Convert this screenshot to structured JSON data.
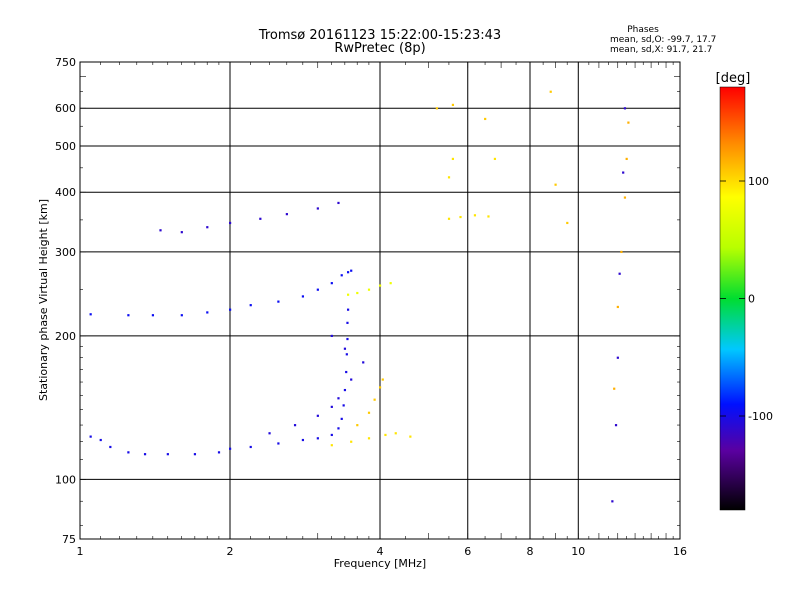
{
  "chart_data": {
    "type": "scatter",
    "title_line1": "Tromsø 20161123 15:22:00-15:23:43",
    "title_line2": "RwPretec (8p)",
    "stats": {
      "heading": "Phases",
      "line_o": "mean, sd,O: -99.7, 17.7",
      "line_x": "mean, sd,X:  91.7, 21.7"
    },
    "xlabel": "Frequency [MHz]",
    "ylabel": "Stationary phase Virtual Height [km]",
    "x_scale": "log",
    "y_scale": "log",
    "xlim": [
      1,
      16
    ],
    "ylim": [
      75,
      750
    ],
    "x_ticks": [
      1,
      2,
      4,
      6,
      8,
      10,
      16
    ],
    "x_tick_labels": [
      "1",
      "2",
      "4",
      "6",
      "8",
      "10",
      "16"
    ],
    "y_ticks": [
      75,
      100,
      200,
      300,
      400,
      500,
      600,
      750
    ],
    "y_tick_labels": [
      "75",
      "100",
      "200",
      "300",
      "400",
      "500",
      "600",
      "750"
    ],
    "x_gridlines": [
      2,
      4,
      6,
      8,
      10
    ],
    "y_gridlines": [
      100,
      200,
      300,
      400,
      500,
      600
    ],
    "colorbar": {
      "label": "[deg]",
      "range": [
        -180,
        180
      ],
      "ticks": [
        100,
        0,
        -100
      ],
      "tick_labels": [
        "100",
        "0",
        "-100"
      ]
    },
    "traces": [
      {
        "phase": -100,
        "points": [
          [
            1.05,
            123
          ],
          [
            1.1,
            121
          ],
          [
            1.15,
            117
          ],
          [
            1.25,
            114
          ],
          [
            1.35,
            113
          ],
          [
            1.5,
            113
          ],
          [
            1.7,
            113
          ],
          [
            1.9,
            114
          ],
          [
            2.0,
            116
          ],
          [
            2.2,
            117
          ],
          [
            2.5,
            119
          ],
          [
            2.8,
            121
          ],
          [
            3.0,
            122
          ],
          [
            3.2,
            124
          ],
          [
            3.3,
            128
          ],
          [
            3.35,
            134
          ],
          [
            3.38,
            143
          ],
          [
            3.4,
            154
          ],
          [
            3.42,
            168
          ],
          [
            3.43,
            183
          ],
          [
            3.44,
            197
          ],
          [
            3.44,
            213
          ],
          [
            3.45,
            227
          ]
        ]
      },
      {
        "phase": -95,
        "points": [
          [
            1.05,
            222
          ],
          [
            1.25,
            221
          ],
          [
            1.4,
            221
          ],
          [
            1.6,
            221
          ],
          [
            1.8,
            224
          ],
          [
            2.0,
            227
          ],
          [
            2.2,
            232
          ],
          [
            2.5,
            236
          ],
          [
            2.8,
            242
          ],
          [
            3.0,
            250
          ],
          [
            3.2,
            258
          ],
          [
            3.35,
            268
          ],
          [
            3.45,
            272
          ],
          [
            3.5,
            274
          ]
        ]
      },
      {
        "phase": -110,
        "points": [
          [
            1.45,
            333
          ],
          [
            1.6,
            330
          ],
          [
            1.8,
            338
          ],
          [
            2.0,
            345
          ],
          [
            2.3,
            352
          ],
          [
            2.6,
            360
          ],
          [
            3.0,
            370
          ],
          [
            3.3,
            380
          ]
        ]
      },
      {
        "phase": -105,
        "points": [
          [
            2.4,
            125
          ],
          [
            2.7,
            130
          ],
          [
            3.0,
            136
          ],
          [
            3.2,
            142
          ],
          [
            3.3,
            148
          ],
          [
            3.5,
            162
          ],
          [
            3.7,
            176
          ],
          [
            3.4,
            188
          ],
          [
            3.2,
            200
          ]
        ]
      },
      {
        "phase": 100,
        "points": [
          [
            3.2,
            118
          ],
          [
            3.5,
            120
          ],
          [
            3.8,
            122
          ],
          [
            4.1,
            124
          ],
          [
            4.3,
            125
          ],
          [
            4.6,
            123
          ]
        ]
      },
      {
        "phase": 110,
        "points": [
          [
            3.6,
            130
          ],
          [
            3.8,
            138
          ],
          [
            3.9,
            147
          ],
          [
            4.0,
            156
          ],
          [
            4.05,
            162
          ]
        ]
      },
      {
        "phase": 80,
        "points": [
          [
            3.45,
            244
          ],
          [
            3.6,
            246
          ],
          [
            3.8,
            250
          ],
          [
            4.0,
            255
          ],
          [
            4.2,
            258
          ]
        ]
      },
      {
        "phase": 100,
        "points": [
          [
            5.5,
            352
          ],
          [
            5.8,
            355
          ],
          [
            6.2,
            358
          ],
          [
            6.6,
            356
          ],
          [
            5.5,
            430
          ],
          [
            5.6,
            470
          ],
          [
            6.8,
            470
          ]
        ]
      },
      {
        "phase": 120,
        "points": [
          [
            11.8,
            155
          ],
          [
            12.0,
            230
          ],
          [
            12.2,
            300
          ],
          [
            12.4,
            390
          ],
          [
            12.5,
            470
          ],
          [
            12.6,
            560
          ]
        ]
      },
      {
        "phase": -110,
        "points": [
          [
            11.7,
            90
          ],
          [
            11.9,
            130
          ],
          [
            12.0,
            180
          ],
          [
            12.1,
            270
          ],
          [
            12.3,
            440
          ],
          [
            12.4,
            600
          ]
        ]
      },
      {
        "phase": 110,
        "points": [
          [
            5.2,
            600
          ],
          [
            5.6,
            610
          ],
          [
            6.5,
            570
          ],
          [
            8.8,
            650
          ],
          [
            9.0,
            415
          ],
          [
            9.5,
            345
          ]
        ]
      }
    ]
  }
}
